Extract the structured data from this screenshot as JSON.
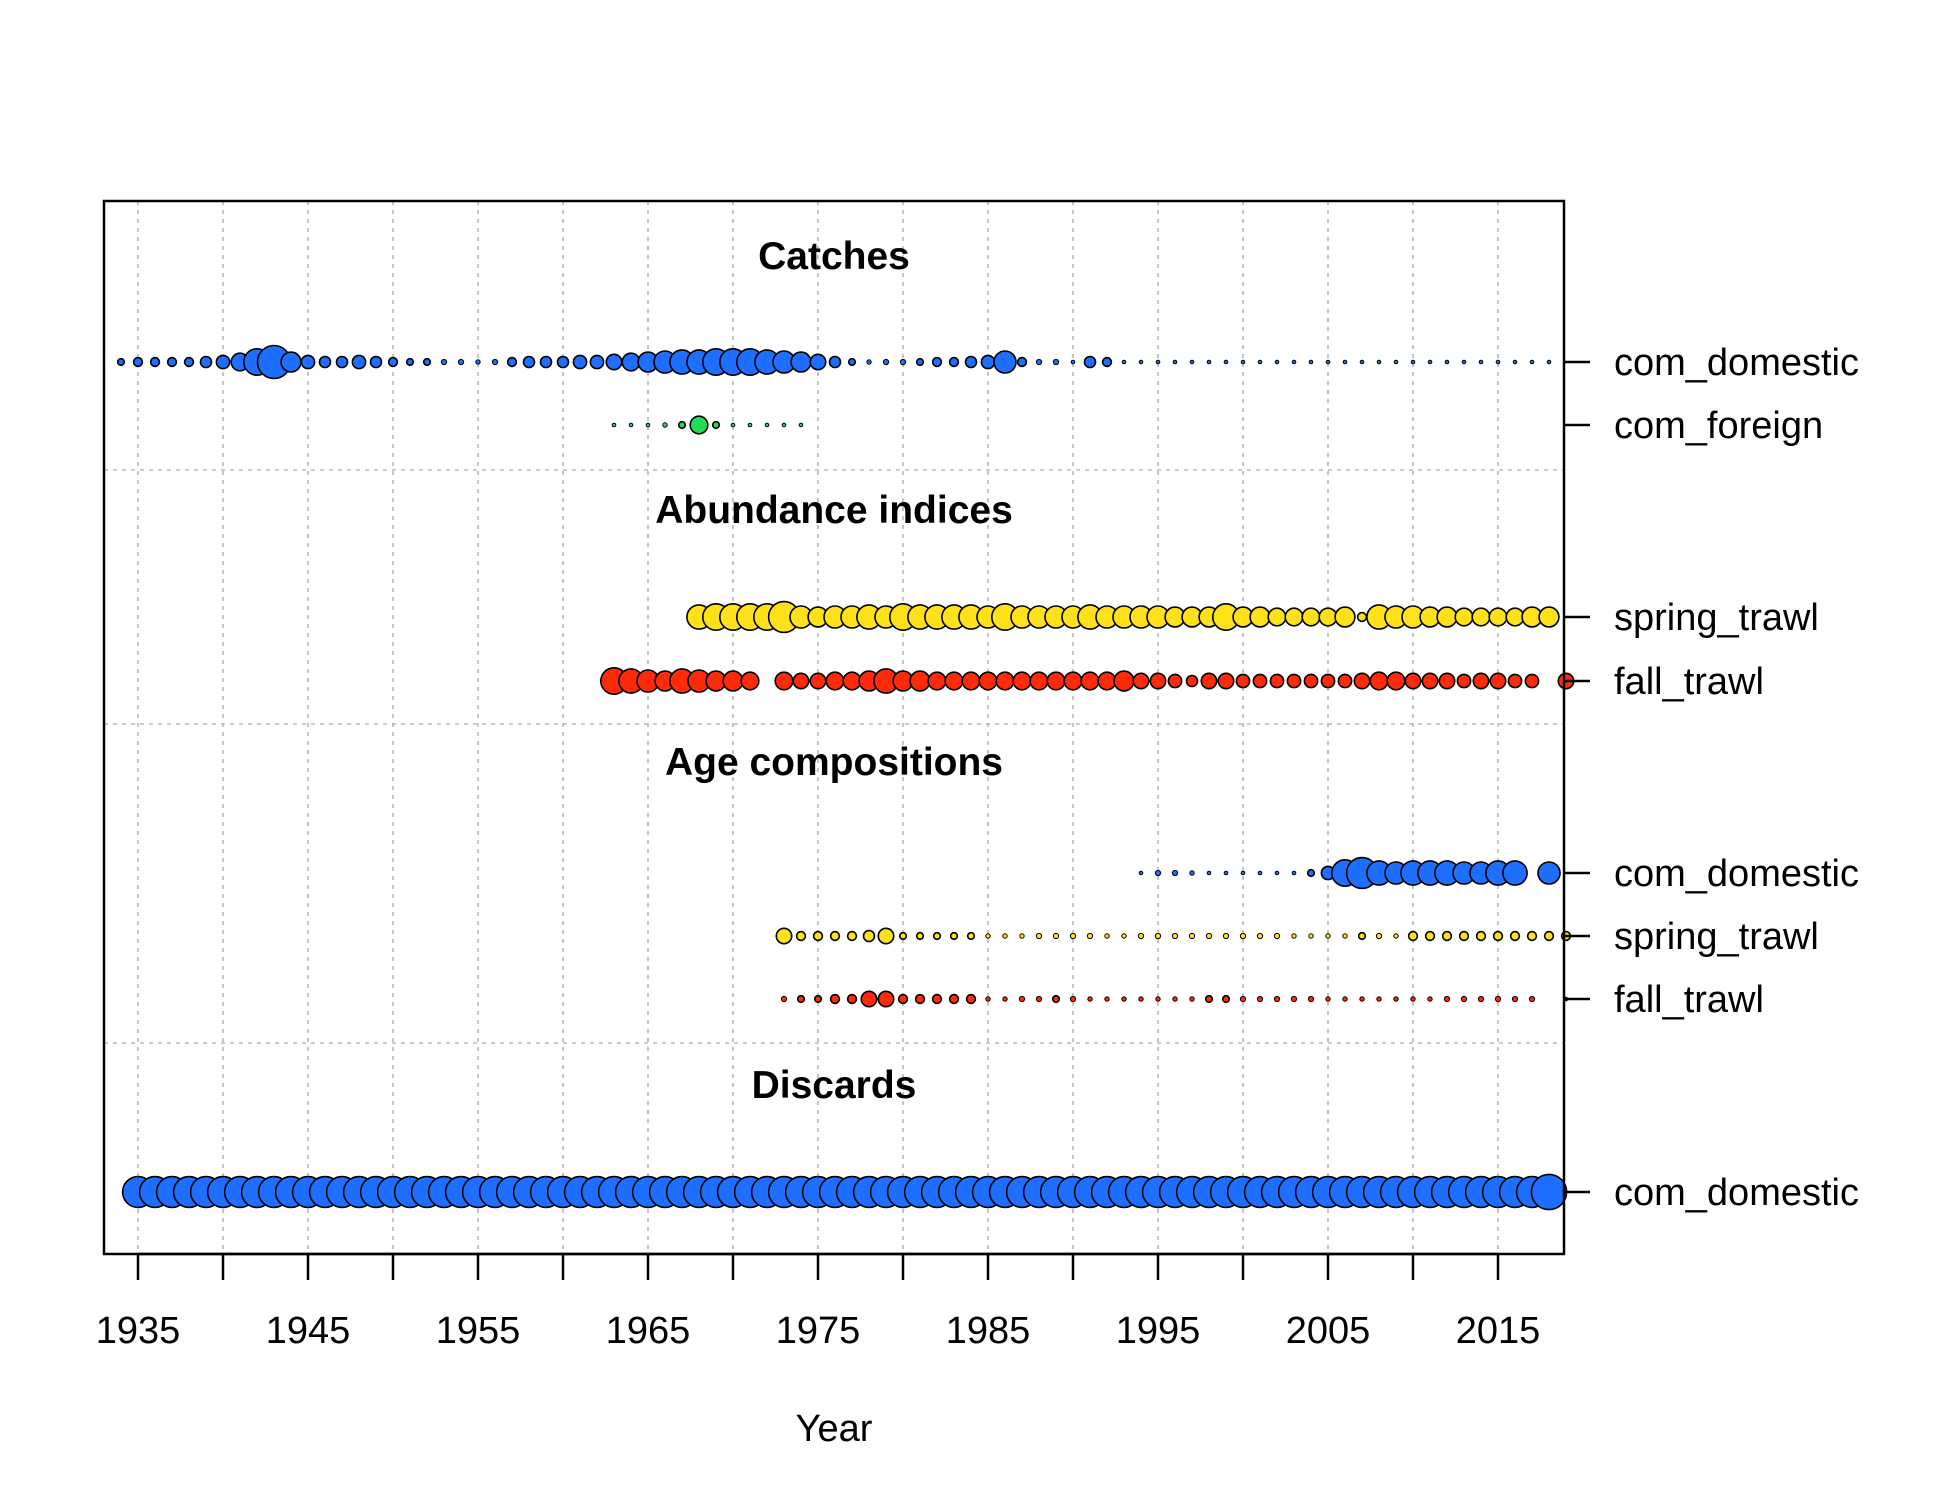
{
  "chart_data": {
    "type": "scatter",
    "subtype": "bubble-timeline",
    "xlabel": "Year",
    "xlim": [
      1933,
      2019
    ],
    "x_ticks": [
      1935,
      1940,
      1945,
      1950,
      1955,
      1960,
      1965,
      1970,
      1975,
      1980,
      1985,
      1990,
      1995,
      2000,
      2005,
      2010,
      2015
    ],
    "x_tick_labels": [
      "1935",
      "",
      "1945",
      "",
      "1955",
      "",
      "1965",
      "",
      "1975",
      "",
      "1985",
      "",
      "1995",
      "",
      "2005",
      "",
      "2015"
    ],
    "grid": true,
    "sections": [
      {
        "title": "Catches",
        "series": [
          {
            "name": "com_domestic",
            "color": "#1E6FFF",
            "start": 1934,
            "sizes": [
              0.15,
              0.2,
              0.2,
              0.2,
              0.2,
              0.25,
              0.3,
              0.4,
              0.6,
              0.75,
              0.45,
              0.3,
              0.25,
              0.25,
              0.3,
              0.25,
              0.2,
              0.15,
              0.15,
              0.12,
              0.12,
              0.1,
              0.12,
              0.2,
              0.25,
              0.25,
              0.25,
              0.3,
              0.3,
              0.35,
              0.4,
              0.45,
              0.5,
              0.55,
              0.55,
              0.6,
              0.6,
              0.6,
              0.55,
              0.5,
              0.45,
              0.35,
              0.25,
              0.15,
              0.1,
              0.12,
              0.12,
              0.15,
              0.2,
              0.2,
              0.25,
              0.3,
              0.5,
              0.2,
              0.12,
              0.12,
              0.05,
              0.25,
              0.2,
              0.05,
              0.05,
              0.05,
              0.05,
              0.05,
              0.04,
              0.04,
              0.04,
              0.04,
              0.04,
              0.04,
              0.04,
              0.04,
              0.04,
              0.04,
              0.04,
              0.04,
              0.04,
              0.04,
              0.04,
              0.04,
              0.04,
              0.04,
              0.04,
              0.04,
              0.04
            ]
          },
          {
            "name": "com_foreign",
            "color": "#22DD55",
            "start": 1963,
            "sizes": [
              0.04,
              0.04,
              0.06,
              0.1,
              0.15,
              0.4,
              0.15,
              0.08,
              0.08,
              0.06,
              0.04,
              0.04
            ]
          }
        ]
      },
      {
        "title": "Abundance indices",
        "series": [
          {
            "name": "spring_trawl",
            "color": "#FFE11A",
            "start": 1968,
            "sizes": [
              0.55,
              0.6,
              0.6,
              0.6,
              0.6,
              0.7,
              0.5,
              0.45,
              0.5,
              0.5,
              0.55,
              0.5,
              0.6,
              0.55,
              0.55,
              0.55,
              0.55,
              0.5,
              0.6,
              0.5,
              0.5,
              0.5,
              0.5,
              0.55,
              0.5,
              0.5,
              0.5,
              0.5,
              0.45,
              0.45,
              0.45,
              0.6,
              0.45,
              0.45,
              0.4,
              0.4,
              0.4,
              0.4,
              0.45,
              0.2,
              0.55,
              0.5,
              0.5,
              0.45,
              0.45,
              0.4,
              0.4,
              0.4,
              0.4,
              0.45,
              0.45
            ]
          },
          {
            "name": "fall_trawl",
            "color": "#FF2A0A",
            "start": 1963,
            "sizes": [
              0.6,
              0.55,
              0.5,
              0.45,
              0.55,
              0.5,
              0.45,
              0.45,
              0.4,
              null,
              0.4,
              0.35,
              0.35,
              0.4,
              0.4,
              0.45,
              0.55,
              0.45,
              0.45,
              0.4,
              0.4,
              0.4,
              0.4,
              0.4,
              0.4,
              0.4,
              0.4,
              0.4,
              0.4,
              0.4,
              0.45,
              0.35,
              0.35,
              0.3,
              0.25,
              0.35,
              0.35,
              0.3,
              0.3,
              0.3,
              0.3,
              0.3,
              0.3,
              0.3,
              0.35,
              0.4,
              0.4,
              0.35,
              0.35,
              0.35,
              0.3,
              0.35,
              0.35,
              0.3,
              0.3,
              null,
              0.35
            ]
          }
        ]
      },
      {
        "title": "Age compositions",
        "series": [
          {
            "name": "com_domestic",
            "color": "#1E6FFF",
            "start": 1994,
            "sizes": [
              0.06,
              0.12,
              0.12,
              0.1,
              0.06,
              0.05,
              0.05,
              0.05,
              0.05,
              0.06,
              0.15,
              0.3,
              0.6,
              0.7,
              0.55,
              0.5,
              0.55,
              0.55,
              0.55,
              0.5,
              0.5,
              0.55,
              0.55,
              null,
              0.5
            ]
          },
          {
            "name": "spring_trawl",
            "color": "#FFE11A",
            "start": 1973,
            "sizes": [
              0.35,
              0.2,
              0.2,
              0.2,
              0.2,
              0.25,
              0.35,
              0.15,
              0.15,
              0.15,
              0.15,
              0.15,
              0.1,
              0.1,
              0.1,
              0.12,
              0.12,
              0.12,
              0.12,
              0.1,
              0.1,
              0.12,
              0.12,
              0.12,
              0.12,
              0.12,
              0.12,
              0.12,
              0.12,
              0.12,
              0.1,
              0.1,
              0.1,
              0.1,
              0.15,
              0.12,
              0.1,
              0.2,
              0.2,
              0.2,
              0.2,
              0.2,
              0.2,
              0.2,
              0.2,
              0.2,
              0.2
            ]
          },
          {
            "name": "fall_trawl",
            "color": "#FF2A0A",
            "start": 1973,
            "sizes": [
              0.12,
              0.15,
              0.15,
              0.2,
              0.2,
              0.35,
              0.35,
              0.2,
              0.2,
              0.2,
              0.2,
              0.2,
              0.1,
              0.1,
              0.12,
              0.12,
              0.15,
              0.12,
              0.1,
              0.1,
              0.1,
              0.1,
              0.1,
              0.1,
              0.1,
              0.15,
              0.15,
              0.12,
              0.12,
              0.12,
              0.12,
              0.12,
              0.1,
              0.1,
              0.1,
              0.1,
              0.1,
              0.1,
              0.1,
              0.12,
              0.12,
              0.12,
              0.12,
              0.12,
              0.12,
              null,
              0.06
            ]
          }
        ]
      },
      {
        "title": "Discards",
        "series": [
          {
            "name": "com_domestic",
            "color": "#1E6FFF",
            "start": 1935,
            "sizes": [
              0.7,
              0.7,
              0.7,
              0.7,
              0.7,
              0.7,
              0.7,
              0.7,
              0.7,
              0.7,
              0.7,
              0.7,
              0.7,
              0.7,
              0.7,
              0.7,
              0.7,
              0.7,
              0.7,
              0.7,
              0.7,
              0.7,
              0.7,
              0.7,
              0.7,
              0.7,
              0.7,
              0.7,
              0.7,
              0.7,
              0.7,
              0.7,
              0.7,
              0.7,
              0.7,
              0.7,
              0.7,
              0.7,
              0.7,
              0.7,
              0.7,
              0.7,
              0.7,
              0.7,
              0.7,
              0.7,
              0.7,
              0.7,
              0.7,
              0.7,
              0.7,
              0.7,
              0.7,
              0.7,
              0.7,
              0.7,
              0.7,
              0.7,
              0.7,
              0.7,
              0.7,
              0.7,
              0.7,
              0.7,
              0.7,
              0.7,
              0.7,
              0.7,
              0.7,
              0.7,
              0.7,
              0.7,
              0.7,
              0.7,
              0.7,
              0.7,
              0.7,
              0.7,
              0.7,
              0.7,
              0.7,
              0.7,
              0.7,
              0.8
            ]
          }
        ]
      }
    ]
  }
}
